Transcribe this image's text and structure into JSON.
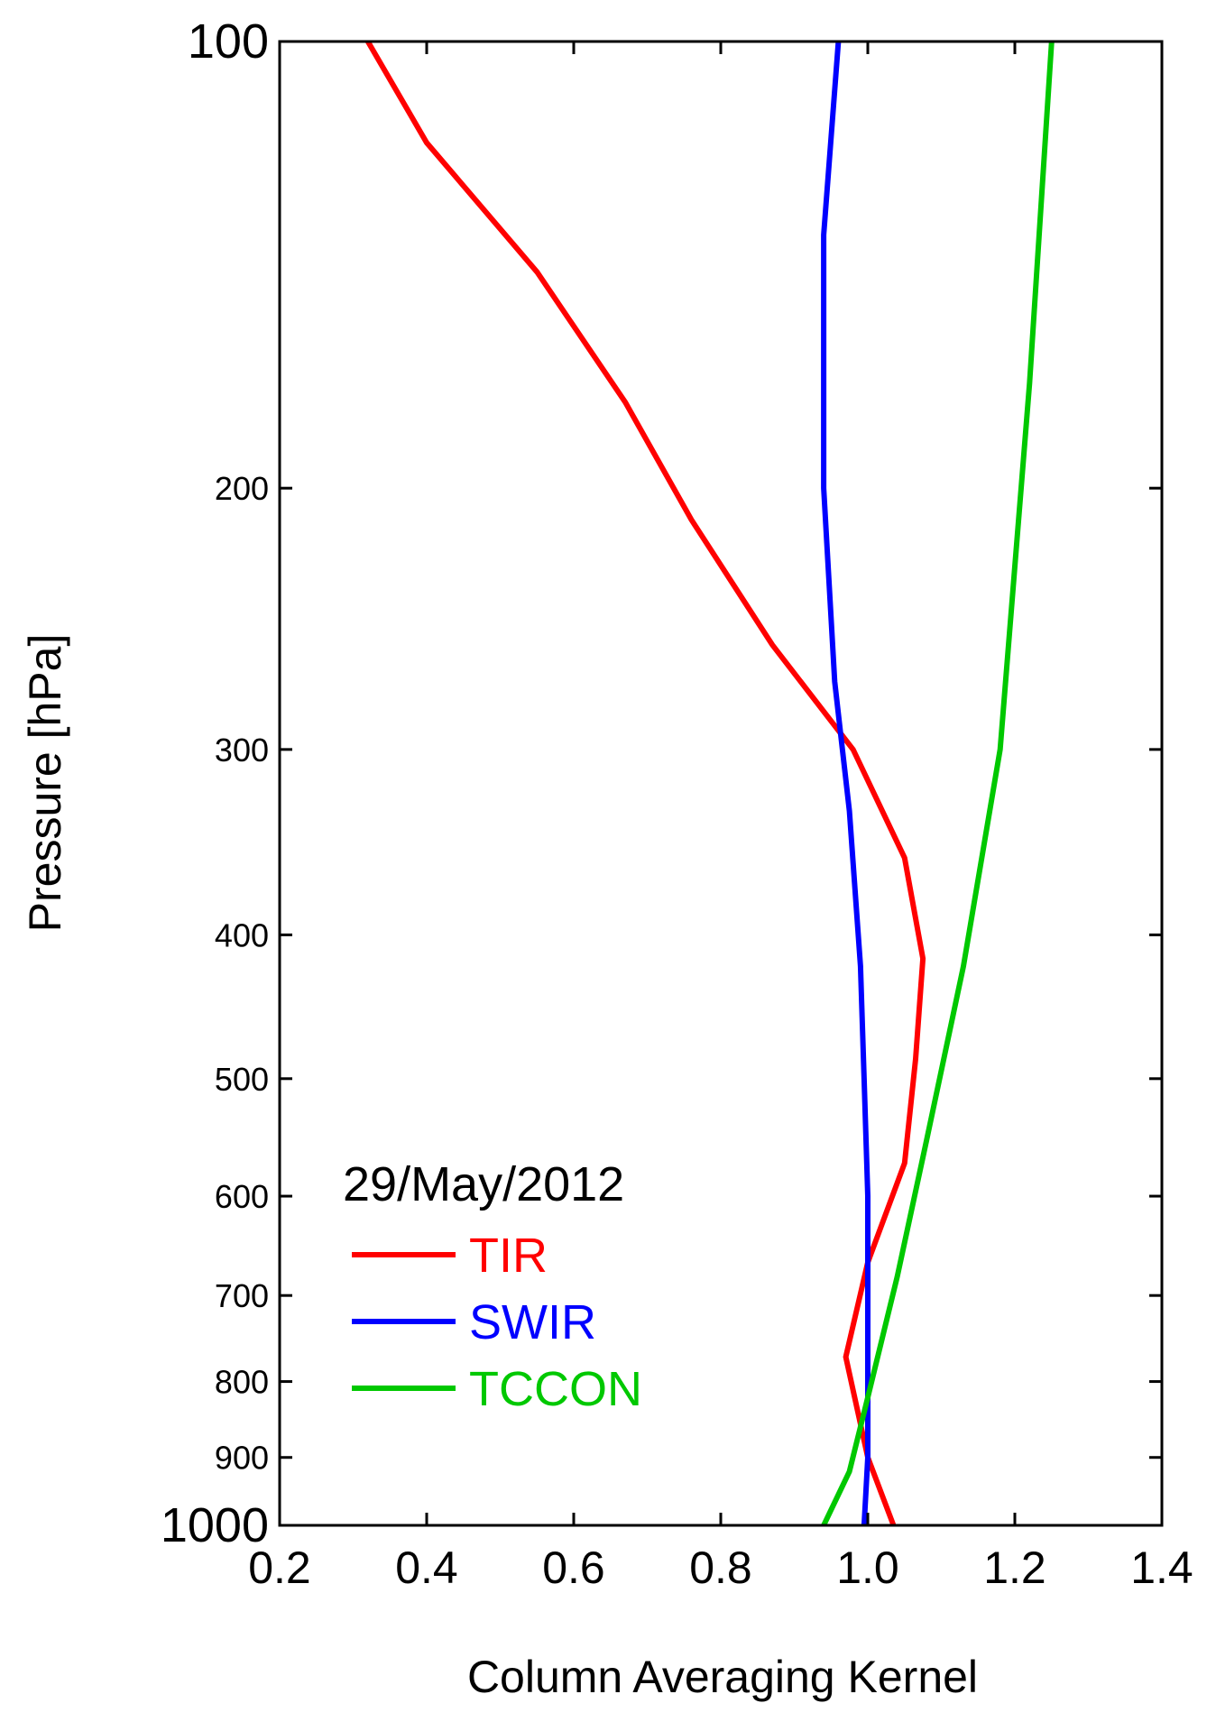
{
  "chart_data": {
    "type": "line",
    "xlabel": "Column Averaging Kernel",
    "ylabel": "Pressure [hPa]",
    "xlim": [
      0.2,
      1.4
    ],
    "ylim": [
      1000,
      100
    ],
    "y_scale": "log",
    "y_inverted": true,
    "grid": false,
    "xticks": [
      0.2,
      0.4,
      0.6,
      0.8,
      1.0,
      1.2,
      1.4
    ],
    "xtick_labels": [
      "0.2",
      "0.4",
      "0.6",
      "0.8",
      "1.0",
      "1.2",
      "1.4"
    ],
    "yticks": [
      100,
      200,
      300,
      400,
      500,
      600,
      700,
      800,
      900,
      1000
    ],
    "ytick_labels": [
      "100",
      "200",
      "300",
      "400",
      "500",
      "600",
      "700",
      "800",
      "900",
      "1000"
    ],
    "legend": {
      "title": "29/May/2012",
      "position": "bottom-left"
    },
    "series": [
      {
        "name": "TIR",
        "color": "#ff0000",
        "points": [
          [
            0.32,
            100
          ],
          [
            0.4,
            117
          ],
          [
            0.55,
            143
          ],
          [
            0.67,
            175
          ],
          [
            0.76,
            210
          ],
          [
            0.87,
            255
          ],
          [
            0.98,
            300
          ],
          [
            1.05,
            355
          ],
          [
            1.075,
            415
          ],
          [
            1.065,
            485
          ],
          [
            1.05,
            570
          ],
          [
            1.0,
            665
          ],
          [
            0.97,
            770
          ],
          [
            1.0,
            900
          ],
          [
            1.035,
            1000
          ]
        ]
      },
      {
        "name": "SWIR",
        "color": "#0000ff",
        "points": [
          [
            0.96,
            100
          ],
          [
            0.94,
            135
          ],
          [
            0.94,
            200
          ],
          [
            0.955,
            270
          ],
          [
            0.975,
            330
          ],
          [
            0.99,
            420
          ],
          [
            0.995,
            500
          ],
          [
            1.0,
            600
          ],
          [
            1.0,
            700
          ],
          [
            1.0,
            800
          ],
          [
            1.0,
            900
          ],
          [
            0.995,
            1000
          ]
        ]
      },
      {
        "name": "TCCON",
        "color": "#00c800",
        "points": [
          [
            1.25,
            100
          ],
          [
            1.22,
            170
          ],
          [
            1.18,
            300
          ],
          [
            1.13,
            420
          ],
          [
            1.08,
            550
          ],
          [
            1.04,
            680
          ],
          [
            1.0,
            820
          ],
          [
            0.975,
            920
          ],
          [
            0.94,
            1000
          ]
        ]
      }
    ]
  }
}
